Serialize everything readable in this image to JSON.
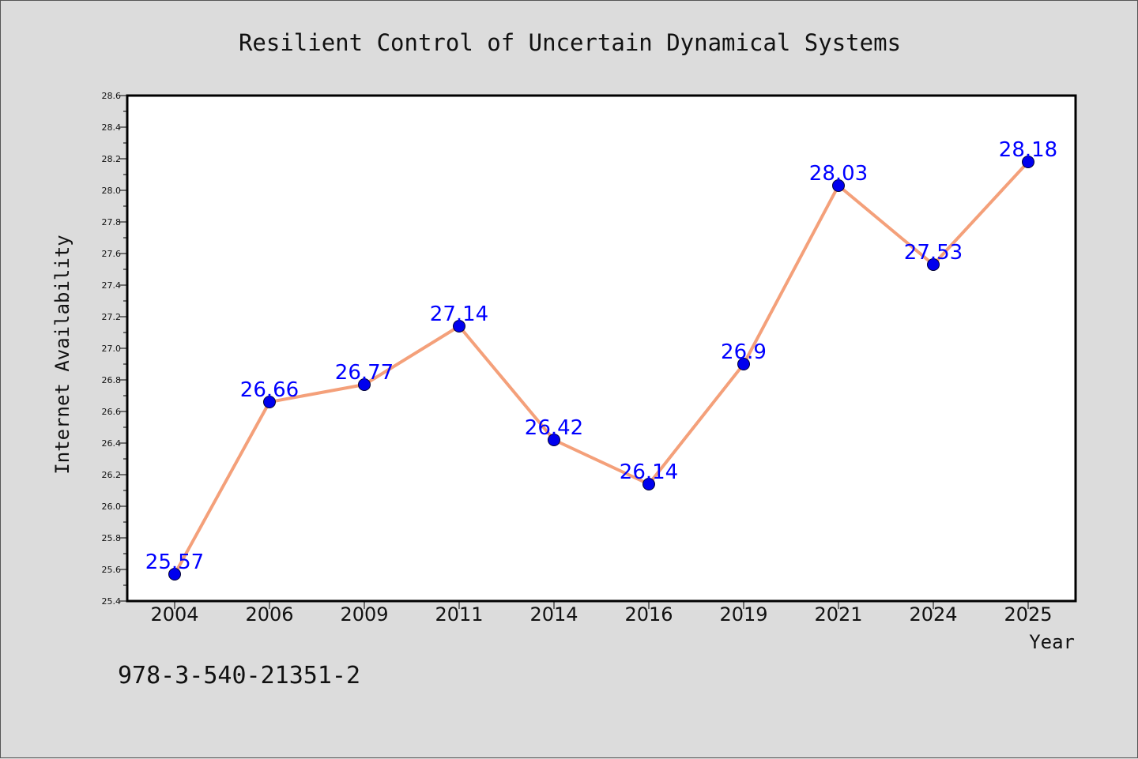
{
  "chart_data": {
    "type": "line",
    "title": "Resilient Control of Uncertain Dynamical Systems",
    "xlabel": "Year",
    "ylabel": "Internet Availability",
    "categories": [
      "2004",
      "2006",
      "2009",
      "2011",
      "2014",
      "2016",
      "2019",
      "2021",
      "2024",
      "2025"
    ],
    "series": [
      {
        "values": [
          25.57,
          26.66,
          26.77,
          27.14,
          26.42,
          26.14,
          26.9,
          28.03,
          27.53,
          28.18
        ],
        "labels": [
          "25.57",
          "26.66",
          "26.77",
          "27.14",
          "26.42",
          "26.14",
          "26.9",
          "28.03",
          "27.53",
          "28.18"
        ],
        "line_color": "#f4a07a",
        "marker_color": "#0000ee",
        "label_color": "#0000ff"
      }
    ],
    "ylim": [
      25.4,
      28.6
    ],
    "yticks": [
      "25.4",
      "25.6",
      "25.8",
      "26.0",
      "26.2",
      "26.4",
      "26.6",
      "26.8",
      "27.0",
      "27.2",
      "27.4",
      "27.6",
      "27.8",
      "28.0",
      "28.2",
      "28.4",
      "28.6"
    ],
    "grid": false,
    "legend": "none",
    "plot_background": "#ffffff",
    "figure_background": "#dcdcdc"
  },
  "footer_text": "978-3-540-21351-2"
}
